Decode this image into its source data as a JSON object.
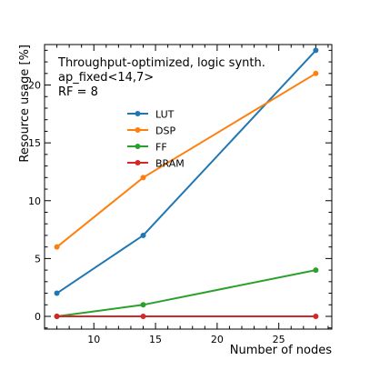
{
  "chart_data": {
    "type": "line",
    "annotation_lines": [
      "Throughput-optimized, logic synth.",
      "ap_fixed<14,7>",
      "RF = 8"
    ],
    "xlabel": "Number of nodes",
    "ylabel": "Resource usage [%]",
    "xlim": [
      6,
      29.3
    ],
    "ylim": [
      -1.1,
      23.5
    ],
    "x_ticks": [
      10,
      15,
      20,
      25
    ],
    "y_ticks": [
      0,
      5,
      10,
      15,
      20
    ],
    "x": [
      7,
      14,
      28
    ],
    "series": [
      {
        "name": "LUT",
        "color": "#1f77b4",
        "values": [
          2,
          7,
          23
        ]
      },
      {
        "name": "DSP",
        "color": "#ff7f0e",
        "values": [
          6,
          12,
          21
        ]
      },
      {
        "name": "FF",
        "color": "#2ca02c",
        "values": [
          0,
          1,
          4
        ]
      },
      {
        "name": "BRAM",
        "color": "#d62728",
        "values": [
          0,
          0,
          0
        ]
      }
    ],
    "legend_position": "upper-center",
    "grid": false
  }
}
